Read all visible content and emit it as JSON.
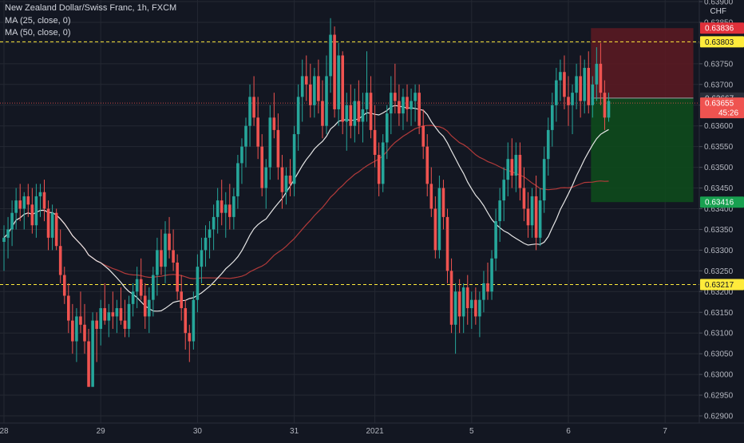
{
  "legend": {
    "symbol": "New Zealand Dollar/Swiss Franc, 1h, FXCM",
    "ma25": "MA (25, close, 0)",
    "ma50": "MA (50, close, 0)"
  },
  "currency_label": "CHF",
  "colors": {
    "background": "#131722",
    "grid": "#242832",
    "up": "#26a69a",
    "down": "#ef5350",
    "ma25": "#e6e6e6",
    "ma50": "#b23a3a",
    "hline": "#ffeb3b",
    "stop_zone": "#5a1a22",
    "target_zone": "#0e4a1c"
  },
  "chart_data": {
    "type": "candlestick",
    "ylim": [
      0.629,
      0.639
    ],
    "y_ticks": [
      "0.63900",
      "0.63850",
      "0.63800",
      "0.63750",
      "0.63700",
      "0.63650",
      "0.63600",
      "0.63550",
      "0.63500",
      "0.63450",
      "0.63400",
      "0.63350",
      "0.63300",
      "0.63250",
      "0.63200",
      "0.63150",
      "0.63100",
      "0.63050",
      "0.63000",
      "0.62950",
      "0.62900"
    ],
    "x_ticks": [
      {
        "label": "28",
        "bar": 0
      },
      {
        "label": "29",
        "bar": 24
      },
      {
        "label": "30",
        "bar": 48
      },
      {
        "label": "31",
        "bar": 72
      },
      {
        "label": "2021",
        "bar": 92
      },
      {
        "label": "5",
        "bar": 116
      },
      {
        "label": "6",
        "bar": 140
      },
      {
        "label": "7",
        "bar": 164
      }
    ],
    "horizontal_lines": [
      0.63803,
      0.63217
    ],
    "price_labels": [
      {
        "value": "0.63836",
        "kind": "stop"
      },
      {
        "value": "0.63803",
        "kind": "line"
      },
      {
        "value": "0.63667",
        "kind": "entry"
      },
      {
        "value": "0.63655",
        "kind": "last"
      },
      {
        "value": "45:26",
        "kind": "countdown"
      },
      {
        "value": "0.63416",
        "kind": "target"
      },
      {
        "value": "0.63217",
        "kind": "line"
      }
    ],
    "position": {
      "entry": 0.63667,
      "stop": 0.63836,
      "target": 0.63416,
      "start_bar": 146,
      "end_bar": 171
    },
    "last_price": 0.63655,
    "ohlc": [
      [
        0.6332,
        0.6336,
        0.6325,
        0.6333
      ],
      [
        0.6333,
        0.6338,
        0.6328,
        0.6335
      ],
      [
        0.6335,
        0.6342,
        0.6331,
        0.6339
      ],
      [
        0.6339,
        0.6345,
        0.6335,
        0.6342
      ],
      [
        0.6342,
        0.6346,
        0.6337,
        0.634
      ],
      [
        0.634,
        0.6344,
        0.6335,
        0.6343
      ],
      [
        0.6343,
        0.6346,
        0.6338,
        0.6341
      ],
      [
        0.6341,
        0.6345,
        0.6334,
        0.6336
      ],
      [
        0.6336,
        0.6346,
        0.6333,
        0.6343
      ],
      [
        0.6343,
        0.6346,
        0.6338,
        0.6344
      ],
      [
        0.6344,
        0.6347,
        0.6337,
        0.634
      ],
      [
        0.634,
        0.6342,
        0.633,
        0.6333
      ],
      [
        0.6333,
        0.6341,
        0.633,
        0.6339
      ],
      [
        0.6339,
        0.634,
        0.633,
        0.6331
      ],
      [
        0.6331,
        0.6335,
        0.6322,
        0.6324
      ],
      [
        0.6324,
        0.6326,
        0.6317,
        0.6319
      ],
      [
        0.6319,
        0.6322,
        0.631,
        0.6313
      ],
      [
        0.6313,
        0.6317,
        0.6305,
        0.6308
      ],
      [
        0.6308,
        0.6316,
        0.6303,
        0.6314
      ],
      [
        0.6314,
        0.632,
        0.631,
        0.6312
      ],
      [
        0.6312,
        0.6317,
        0.6305,
        0.6308
      ],
      [
        0.6308,
        0.6311,
        0.6297,
        0.6297
      ],
      [
        0.6297,
        0.6315,
        0.6297,
        0.6313
      ],
      [
        0.6313,
        0.6315,
        0.6303,
        0.6311
      ],
      [
        0.6311,
        0.6318,
        0.6307,
        0.6316
      ],
      [
        0.6316,
        0.6322,
        0.6312,
        0.6313
      ],
      [
        0.6313,
        0.6317,
        0.6309,
        0.6315
      ],
      [
        0.6315,
        0.632,
        0.6311,
        0.6314
      ],
      [
        0.6314,
        0.6318,
        0.631,
        0.6316
      ],
      [
        0.6316,
        0.6321,
        0.6312,
        0.6313
      ],
      [
        0.6313,
        0.6318,
        0.6309,
        0.6311
      ],
      [
        0.6311,
        0.6319,
        0.6309,
        0.6317
      ],
      [
        0.6317,
        0.6322,
        0.6314,
        0.632
      ],
      [
        0.632,
        0.6326,
        0.6316,
        0.6323
      ],
      [
        0.6323,
        0.6328,
        0.6318,
        0.6319
      ],
      [
        0.6319,
        0.6322,
        0.6311,
        0.6314
      ],
      [
        0.6314,
        0.6321,
        0.631,
        0.6318
      ],
      [
        0.6318,
        0.6326,
        0.6314,
        0.6324
      ],
      [
        0.6324,
        0.6333,
        0.6319,
        0.633
      ],
      [
        0.633,
        0.6335,
        0.6324,
        0.6326
      ],
      [
        0.6326,
        0.6337,
        0.6322,
        0.6334
      ],
      [
        0.6334,
        0.6338,
        0.6328,
        0.633
      ],
      [
        0.633,
        0.6335,
        0.6325,
        0.6327
      ],
      [
        0.6327,
        0.6329,
        0.6318,
        0.632
      ],
      [
        0.632,
        0.6324,
        0.6313,
        0.6316
      ],
      [
        0.6316,
        0.6318,
        0.6306,
        0.631
      ],
      [
        0.631,
        0.6312,
        0.6303,
        0.6308
      ],
      [
        0.6308,
        0.632,
        0.6306,
        0.6318
      ],
      [
        0.6318,
        0.6329,
        0.6315,
        0.6326
      ],
      [
        0.6326,
        0.6333,
        0.6322,
        0.633
      ],
      [
        0.633,
        0.6336,
        0.6326,
        0.6333
      ],
      [
        0.6333,
        0.6337,
        0.6328,
        0.6335
      ],
      [
        0.6335,
        0.6341,
        0.633,
        0.6338
      ],
      [
        0.6338,
        0.6345,
        0.6334,
        0.6342
      ],
      [
        0.6342,
        0.6347,
        0.6336,
        0.6339
      ],
      [
        0.6339,
        0.6344,
        0.6333,
        0.6341
      ],
      [
        0.6341,
        0.6346,
        0.6335,
        0.6338
      ],
      [
        0.6338,
        0.6345,
        0.6335,
        0.6343
      ],
      [
        0.6343,
        0.6353,
        0.634,
        0.6351
      ],
      [
        0.6351,
        0.6357,
        0.6346,
        0.6355
      ],
      [
        0.6355,
        0.6362,
        0.635,
        0.636
      ],
      [
        0.636,
        0.637,
        0.6355,
        0.6367
      ],
      [
        0.6367,
        0.6372,
        0.636,
        0.6362
      ],
      [
        0.6362,
        0.6367,
        0.6352,
        0.6355
      ],
      [
        0.6355,
        0.6358,
        0.6343,
        0.6345
      ],
      [
        0.6345,
        0.6352,
        0.634,
        0.635
      ],
      [
        0.635,
        0.6365,
        0.6347,
        0.6362
      ],
      [
        0.6362,
        0.6368,
        0.6357,
        0.6359
      ],
      [
        0.6359,
        0.6363,
        0.6347,
        0.635
      ],
      [
        0.635,
        0.6353,
        0.634,
        0.6344
      ],
      [
        0.6344,
        0.635,
        0.6341,
        0.6348
      ],
      [
        0.6348,
        0.6352,
        0.6343,
        0.6346
      ],
      [
        0.6346,
        0.636,
        0.6343,
        0.6358
      ],
      [
        0.6358,
        0.637,
        0.6354,
        0.6367
      ],
      [
        0.6367,
        0.6376,
        0.6361,
        0.6372
      ],
      [
        0.6372,
        0.6377,
        0.6366,
        0.637
      ],
      [
        0.637,
        0.6375,
        0.6362,
        0.6365
      ],
      [
        0.6365,
        0.6374,
        0.6362,
        0.6372
      ],
      [
        0.6372,
        0.6376,
        0.6363,
        0.6366
      ],
      [
        0.6366,
        0.6371,
        0.6357,
        0.636
      ],
      [
        0.636,
        0.6377,
        0.6358,
        0.6372
      ],
      [
        0.6372,
        0.6386,
        0.6368,
        0.6382
      ],
      [
        0.6382,
        0.6384,
        0.6362,
        0.6364
      ],
      [
        0.6364,
        0.638,
        0.636,
        0.6377
      ],
      [
        0.6377,
        0.6378,
        0.6358,
        0.6361
      ],
      [
        0.6361,
        0.6368,
        0.6354,
        0.6365
      ],
      [
        0.6365,
        0.637,
        0.6357,
        0.636
      ],
      [
        0.636,
        0.6369,
        0.6356,
        0.6366
      ],
      [
        0.6366,
        0.6371,
        0.6358,
        0.6361
      ],
      [
        0.6361,
        0.6368,
        0.6356,
        0.6364
      ],
      [
        0.6364,
        0.6378,
        0.6361,
        0.6368
      ],
      [
        0.6368,
        0.6372,
        0.6357,
        0.6359
      ],
      [
        0.6359,
        0.6365,
        0.635,
        0.6353
      ],
      [
        0.6353,
        0.6356,
        0.6343,
        0.6346
      ],
      [
        0.6346,
        0.6358,
        0.6344,
        0.6356
      ],
      [
        0.6356,
        0.6365,
        0.6352,
        0.6363
      ],
      [
        0.6363,
        0.6372,
        0.6358,
        0.6368
      ],
      [
        0.6368,
        0.6375,
        0.6363,
        0.6366
      ],
      [
        0.6366,
        0.637,
        0.636,
        0.6363
      ],
      [
        0.6363,
        0.6369,
        0.6359,
        0.6367
      ],
      [
        0.6367,
        0.637,
        0.6361,
        0.6364
      ],
      [
        0.6364,
        0.6369,
        0.636,
        0.6366
      ],
      [
        0.6366,
        0.637,
        0.6361,
        0.6368
      ],
      [
        0.6368,
        0.637,
        0.6358,
        0.636
      ],
      [
        0.636,
        0.6364,
        0.6352,
        0.6355
      ],
      [
        0.6355,
        0.6358,
        0.6343,
        0.6346
      ],
      [
        0.6346,
        0.635,
        0.6338,
        0.634
      ],
      [
        0.634,
        0.6343,
        0.6328,
        0.633
      ],
      [
        0.633,
        0.6348,
        0.6328,
        0.6345
      ],
      [
        0.6345,
        0.6347,
        0.6335,
        0.6338
      ],
      [
        0.6338,
        0.634,
        0.6322,
        0.6325
      ],
      [
        0.6325,
        0.6328,
        0.631,
        0.6312
      ],
      [
        0.6312,
        0.6322,
        0.6305,
        0.632
      ],
      [
        0.632,
        0.6323,
        0.631,
        0.6314
      ],
      [
        0.6314,
        0.6322,
        0.631,
        0.6321
      ],
      [
        0.6321,
        0.6324,
        0.6312,
        0.6316
      ],
      [
        0.6316,
        0.632,
        0.6311,
        0.6318
      ],
      [
        0.6318,
        0.6321,
        0.6312,
        0.6314
      ],
      [
        0.6314,
        0.632,
        0.6309,
        0.6318
      ],
      [
        0.6318,
        0.6325,
        0.6315,
        0.6322
      ],
      [
        0.6322,
        0.6327,
        0.6318,
        0.632
      ],
      [
        0.632,
        0.633,
        0.6318,
        0.6328
      ],
      [
        0.6328,
        0.634,
        0.6325,
        0.6337
      ],
      [
        0.6337,
        0.6345,
        0.6332,
        0.6342
      ],
      [
        0.6342,
        0.635,
        0.6337,
        0.6347
      ],
      [
        0.6347,
        0.6356,
        0.6343,
        0.6352
      ],
      [
        0.6352,
        0.6357,
        0.6345,
        0.6348
      ],
      [
        0.6348,
        0.6356,
        0.6344,
        0.6353
      ],
      [
        0.6353,
        0.6356,
        0.6342,
        0.6345
      ],
      [
        0.6345,
        0.635,
        0.6337,
        0.634
      ],
      [
        0.634,
        0.6344,
        0.6333,
        0.6336
      ],
      [
        0.6336,
        0.6345,
        0.6333,
        0.6343
      ],
      [
        0.6343,
        0.6348,
        0.633,
        0.6333
      ],
      [
        0.6333,
        0.6345,
        0.6331,
        0.6342
      ],
      [
        0.6342,
        0.6355,
        0.6339,
        0.6352
      ],
      [
        0.6352,
        0.6362,
        0.6348,
        0.6359
      ],
      [
        0.6359,
        0.6368,
        0.6355,
        0.6365
      ],
      [
        0.6365,
        0.6374,
        0.6361,
        0.6371
      ],
      [
        0.6371,
        0.6376,
        0.6366,
        0.6373
      ],
      [
        0.6373,
        0.6377,
        0.6364,
        0.6367
      ],
      [
        0.6367,
        0.6372,
        0.636,
        0.6365
      ],
      [
        0.6365,
        0.637,
        0.6358,
        0.6368
      ],
      [
        0.6368,
        0.6375,
        0.6364,
        0.6372
      ],
      [
        0.6372,
        0.6377,
        0.6362,
        0.6366
      ],
      [
        0.6366,
        0.6376,
        0.6363,
        0.6374
      ],
      [
        0.6374,
        0.6378,
        0.6363,
        0.6365
      ],
      [
        0.6365,
        0.6372,
        0.6362,
        0.637
      ],
      [
        0.637,
        0.6379,
        0.6366,
        0.6375
      ],
      [
        0.6375,
        0.638,
        0.6365,
        0.6368
      ],
      [
        0.6368,
        0.6371,
        0.6359,
        0.6362
      ],
      [
        0.6362,
        0.6368,
        0.6361,
        0.6366
      ]
    ]
  }
}
